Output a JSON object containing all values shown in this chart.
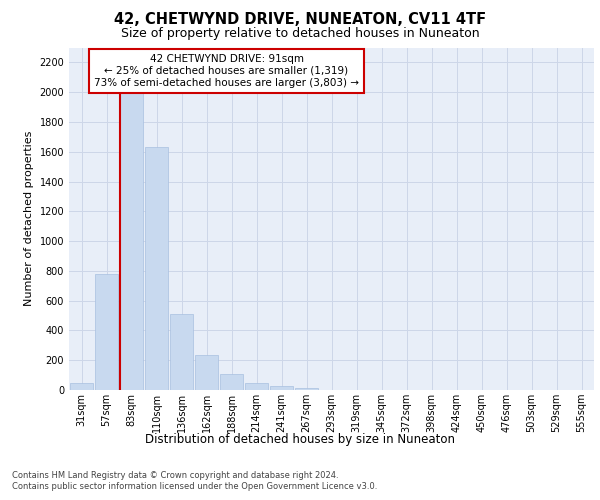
{
  "title": "42, CHETWYND DRIVE, NUNEATON, CV11 4TF",
  "subtitle": "Size of property relative to detached houses in Nuneaton",
  "xlabel": "Distribution of detached houses by size in Nuneaton",
  "ylabel": "Number of detached properties",
  "footnote1": "Contains HM Land Registry data © Crown copyright and database right 2024.",
  "footnote2": "Contains public sector information licensed under the Open Government Licence v3.0.",
  "bar_color": "#c8d9ef",
  "bar_edge_color": "#a8c0e0",
  "annotation_line1": "42 CHETWYND DRIVE: 91sqm",
  "annotation_line2": "← 25% of detached houses are smaller (1,319)",
  "annotation_line3": "73% of semi-detached houses are larger (3,803) →",
  "annotation_box_color": "#ffffff",
  "annotation_box_edge_color": "#cc0000",
  "redline_color": "#cc0000",
  "property_bin_index": 2,
  "categories": [
    "31sqm",
    "57sqm",
    "83sqm",
    "110sqm",
    "136sqm",
    "162sqm",
    "188sqm",
    "214sqm",
    "241sqm",
    "267sqm",
    "293sqm",
    "319sqm",
    "345sqm",
    "372sqm",
    "398sqm",
    "424sqm",
    "450sqm",
    "476sqm",
    "503sqm",
    "529sqm",
    "555sqm"
  ],
  "values": [
    50,
    780,
    2100,
    1630,
    510,
    235,
    105,
    50,
    30,
    15,
    0,
    0,
    0,
    0,
    0,
    0,
    0,
    0,
    0,
    0,
    0
  ],
  "ylim": [
    0,
    2300
  ],
  "yticks": [
    0,
    200,
    400,
    600,
    800,
    1000,
    1200,
    1400,
    1600,
    1800,
    2000,
    2200
  ],
  "grid_color": "#cdd6e8",
  "bg_color": "#e8eef8",
  "title_fontsize": 10.5,
  "subtitle_fontsize": 9,
  "ylabel_fontsize": 8,
  "xlabel_fontsize": 8.5,
  "tick_fontsize": 7,
  "annotation_fontsize": 7.5,
  "footnote_fontsize": 6
}
